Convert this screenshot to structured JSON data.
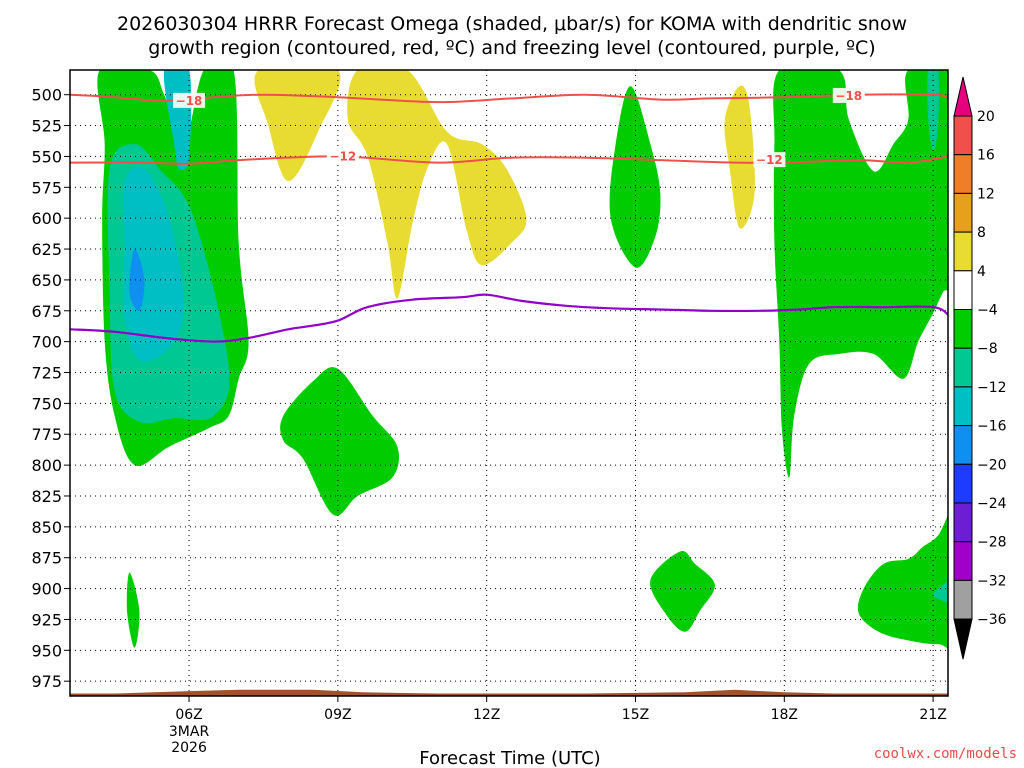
{
  "title_line1": "2026030304 HRRR Forecast Omega (shaded, μbar/s) for KOMA with dendritic snow",
  "title_line2": "growth region (contoured, red, ºC) and freezing level (contoured, purple, ºC)",
  "credit": "coolwx.com/models",
  "chart_data": {
    "type": "heatmap",
    "xlabel": "Forecast Time (UTC)",
    "x_range": [
      3.6,
      21.3
    ],
    "y_range": [
      480,
      987
    ],
    "x_ticks": [
      {
        "x": 6,
        "label": "06Z",
        "sub1": "3MAR",
        "sub2": "2026"
      },
      {
        "x": 9,
        "label": "09Z",
        "sub1": "",
        "sub2": ""
      },
      {
        "x": 12,
        "label": "12Z",
        "sub1": "",
        "sub2": ""
      },
      {
        "x": 15,
        "label": "15Z",
        "sub1": "",
        "sub2": ""
      },
      {
        "x": 18,
        "label": "18Z",
        "sub1": "",
        "sub2": ""
      },
      {
        "x": 21,
        "label": "21Z",
        "sub1": "",
        "sub2": ""
      }
    ],
    "y_ticks": [
      500,
      525,
      550,
      575,
      600,
      625,
      650,
      675,
      700,
      725,
      750,
      775,
      800,
      825,
      850,
      875,
      900,
      925,
      950,
      975
    ],
    "colorbar": {
      "levels": [
        -36,
        -32,
        -28,
        -24,
        -20,
        -16,
        -12,
        -8,
        -4,
        4,
        8,
        12,
        16,
        20
      ],
      "labels": [
        "20",
        "16",
        "12",
        "8",
        "4",
        "−4",
        "−8",
        "−12",
        "−16",
        "−20",
        "−24",
        "−28",
        "−32",
        "−36"
      ],
      "colors": {
        "gt20": "#e6007e",
        "16_20": "#f0504b",
        "12_16": "#f07d28",
        "8_12": "#e6a01e",
        "4_8": "#e8dc32",
        "m4_4": "#ffffff",
        "m8_m4": "#00cc00",
        "m12_m8": "#00c893",
        "m16_m12": "#00bfc4",
        "m20_m16": "#0f8fef",
        "m24_m20": "#1e3cff",
        "m28_m24": "#6e1ed2",
        "m32_m28": "#a000c8",
        "m36_m32": "#a0a0a0",
        "lt36": "#000000"
      }
    },
    "omega_regions": [
      {
        "level": "-4",
        "color": "#00cc00",
        "points": [
          [
            4.2,
            480
          ],
          [
            5.2,
            480
          ],
          [
            5.5,
            500
          ],
          [
            5.9,
            540
          ],
          [
            6.3,
            480
          ],
          [
            6.9,
            480
          ],
          [
            7.0,
            620
          ],
          [
            7.2,
            700
          ],
          [
            7.0,
            730
          ],
          [
            6.8,
            760
          ],
          [
            6.4,
            770
          ],
          [
            5.6,
            785
          ],
          [
            4.9,
            800
          ],
          [
            4.5,
            760
          ],
          [
            4.3,
            700
          ],
          [
            4.25,
            600
          ],
          [
            4.3,
            540
          ]
        ]
      },
      {
        "level": "-8",
        "color": "#00c893",
        "points": [
          [
            4.4,
            560
          ],
          [
            4.9,
            540
          ],
          [
            5.4,
            560
          ],
          [
            6.1,
            600
          ],
          [
            6.8,
            720
          ],
          [
            6.5,
            760
          ],
          [
            5.7,
            762
          ],
          [
            5.0,
            765
          ],
          [
            4.5,
            740
          ],
          [
            4.4,
            660
          ]
        ]
      },
      {
        "level": "-12",
        "color": "#00bfc4",
        "points": [
          [
            5.5,
            480
          ],
          [
            6.0,
            480
          ],
          [
            6.0,
            550
          ],
          [
            5.8,
            560
          ],
          [
            5.7,
            540
          ]
        ]
      },
      {
        "level": "-12",
        "color": "#00bfc4",
        "points": [
          [
            4.7,
            570
          ],
          [
            5.1,
            560
          ],
          [
            5.6,
            600
          ],
          [
            5.9,
            670
          ],
          [
            5.6,
            705
          ],
          [
            5.0,
            715
          ],
          [
            4.7,
            680
          ],
          [
            4.7,
            620
          ]
        ]
      },
      {
        "level": "-16",
        "color": "#0f8fef",
        "points": [
          [
            4.9,
            625
          ],
          [
            5.1,
            650
          ],
          [
            5.0,
            675
          ],
          [
            4.8,
            660
          ]
        ]
      },
      {
        "level": "-4",
        "color": "#00cc00",
        "points": [
          [
            4.8,
            887
          ],
          [
            5.0,
            918
          ],
          [
            4.9,
            948
          ],
          [
            4.75,
            918
          ]
        ]
      },
      {
        "level": "-4",
        "color": "#00cc00",
        "points": [
          [
            7.9,
            760
          ],
          [
            8.5,
            732
          ],
          [
            9.0,
            722
          ],
          [
            9.7,
            760
          ],
          [
            10.2,
            785
          ],
          [
            10.1,
            810
          ],
          [
            9.4,
            825
          ],
          [
            8.9,
            840
          ],
          [
            8.3,
            795
          ],
          [
            7.9,
            780
          ]
        ]
      },
      {
        "level": "-4",
        "color": "#00cc00",
        "points": [
          [
            14.9,
            493
          ],
          [
            15.3,
            540
          ],
          [
            15.5,
            580
          ],
          [
            15.4,
            615
          ],
          [
            15.0,
            640
          ],
          [
            14.5,
            600
          ],
          [
            14.6,
            540
          ]
        ]
      },
      {
        "level": "-4",
        "color": "#00cc00",
        "points": [
          [
            15.3,
            893
          ],
          [
            15.9,
            870
          ],
          [
            16.2,
            880
          ],
          [
            16.6,
            897
          ],
          [
            16.3,
            918
          ],
          [
            16.0,
            935
          ],
          [
            15.6,
            920
          ]
        ]
      },
      {
        "level": "-4",
        "color": "#00cc00",
        "points": [
          [
            17.9,
            480
          ],
          [
            19.1,
            480
          ],
          [
            19.3,
            520
          ],
          [
            19.8,
            562
          ],
          [
            20.2,
            540
          ],
          [
            20.5,
            520
          ],
          [
            20.5,
            480
          ],
          [
            21.5,
            480
          ],
          [
            21.5,
            640
          ],
          [
            21.2,
            660
          ],
          [
            21.0,
            677
          ],
          [
            20.7,
            700
          ],
          [
            20.4,
            730
          ],
          [
            19.8,
            710
          ],
          [
            19.1,
            710
          ],
          [
            18.5,
            718
          ],
          [
            18.2,
            760
          ],
          [
            18.1,
            810
          ],
          [
            17.95,
            770
          ],
          [
            17.9,
            700
          ],
          [
            17.8,
            620
          ],
          [
            17.8,
            540
          ]
        ]
      },
      {
        "level": "-8",
        "color": "#00c893",
        "points": [
          [
            20.9,
            480
          ],
          [
            21.1,
            480
          ],
          [
            21.1,
            525
          ],
          [
            21.0,
            545
          ],
          [
            20.9,
            520
          ]
        ]
      },
      {
        "level": "-4",
        "color": "#00cc00",
        "points": [
          [
            19.6,
            900
          ],
          [
            20.0,
            880
          ],
          [
            20.5,
            876
          ],
          [
            20.8,
            866
          ],
          [
            21.1,
            857
          ],
          [
            21.5,
            835
          ],
          [
            21.5,
            940
          ],
          [
            21.1,
            945
          ],
          [
            20.5,
            942
          ],
          [
            19.9,
            935
          ],
          [
            19.5,
            920
          ]
        ]
      },
      {
        "level": "-8",
        "color": "#00c893",
        "points": [
          [
            21.0,
            905
          ],
          [
            21.3,
            893
          ],
          [
            21.5,
            880
          ],
          [
            21.5,
            920
          ],
          [
            21.3,
            912
          ]
        ]
      },
      {
        "level": "4",
        "color": "#e8dc32",
        "points": [
          [
            7.4,
            480
          ],
          [
            9.0,
            480
          ],
          [
            8.6,
            530
          ],
          [
            8.0,
            570
          ],
          [
            7.6,
            525
          ]
        ]
      },
      {
        "level": "4",
        "color": "#e8dc32",
        "points": [
          [
            9.4,
            480
          ],
          [
            10.4,
            480
          ],
          [
            11.2,
            530
          ],
          [
            11.9,
            540
          ],
          [
            12.4,
            560
          ],
          [
            12.8,
            600
          ],
          [
            12.5,
            620
          ],
          [
            11.9,
            638
          ],
          [
            11.6,
            610
          ],
          [
            11.2,
            540
          ],
          [
            10.8,
            560
          ],
          [
            10.5,
            605
          ],
          [
            10.2,
            665
          ],
          [
            10.0,
            620
          ],
          [
            9.6,
            550
          ],
          [
            9.2,
            520
          ]
        ]
      },
      {
        "level": "4",
        "color": "#e8dc32",
        "points": [
          [
            17.1,
            493
          ],
          [
            17.3,
            510
          ],
          [
            17.4,
            580
          ],
          [
            17.1,
            608
          ],
          [
            16.9,
            560
          ],
          [
            16.8,
            520
          ]
        ]
      }
    ],
    "dgz_isotherms": [
      {
        "value": -18,
        "label": "−18",
        "color": "#f0504b",
        "points": [
          [
            3.6,
            500
          ],
          [
            4.5,
            502
          ],
          [
            5.5,
            505
          ],
          [
            6.5,
            502
          ],
          [
            7.5,
            500
          ],
          [
            9.0,
            502
          ],
          [
            11.0,
            506
          ],
          [
            12.5,
            503
          ],
          [
            14.0,
            500
          ],
          [
            15.5,
            504
          ],
          [
            16.5,
            503
          ],
          [
            18.0,
            502
          ],
          [
            19.5,
            500
          ],
          [
            21.0,
            500
          ],
          [
            21.3,
            502
          ]
        ],
        "labels_at": [
          [
            6.0,
            505
          ],
          [
            19.3,
            501
          ]
        ]
      },
      {
        "value": -12,
        "label": "−12",
        "color": "#f0504b",
        "points": [
          [
            3.6,
            555
          ],
          [
            5.0,
            555
          ],
          [
            6.0,
            556
          ],
          [
            7.0,
            553
          ],
          [
            9.0,
            550
          ],
          [
            11.0,
            555
          ],
          [
            12.5,
            551
          ],
          [
            14.0,
            551
          ],
          [
            15.5,
            553
          ],
          [
            17.0,
            555
          ],
          [
            18.0,
            555
          ],
          [
            19.5,
            553
          ],
          [
            20.5,
            555
          ],
          [
            21.3,
            550
          ]
        ],
        "labels_at": [
          [
            9.1,
            550
          ],
          [
            17.7,
            553
          ]
        ]
      }
    ],
    "freezing_level": {
      "value": 0,
      "color": "#9000c8",
      "points": [
        [
          3.6,
          690
        ],
        [
          4.5,
          692
        ],
        [
          5.5,
          697
        ],
        [
          6.5,
          700
        ],
        [
          7.2,
          697
        ],
        [
          8.0,
          690
        ],
        [
          8.5,
          687
        ],
        [
          9.0,
          683
        ],
        [
          9.6,
          672
        ],
        [
          10.5,
          666
        ],
        [
          11.5,
          664
        ],
        [
          12.0,
          662
        ],
        [
          12.7,
          667
        ],
        [
          13.6,
          671
        ],
        [
          14.5,
          673
        ],
        [
          15.5,
          674
        ],
        [
          16.5,
          675
        ],
        [
          17.5,
          675
        ],
        [
          18.3,
          674
        ],
        [
          19.0,
          672
        ],
        [
          20.0,
          672
        ],
        [
          21.0,
          672
        ],
        [
          21.3,
          678
        ]
      ]
    },
    "terrain": {
      "color": "#a0522d",
      "points": [
        [
          3.6,
          985
        ],
        [
          4.5,
          985
        ],
        [
          6.0,
          983
        ],
        [
          7.0,
          982
        ],
        [
          8.5,
          982
        ],
        [
          9.5,
          984
        ],
        [
          11.0,
          985
        ],
        [
          14.0,
          985
        ],
        [
          16.0,
          984
        ],
        [
          17.0,
          982
        ],
        [
          18.0,
          984
        ],
        [
          19.0,
          985
        ],
        [
          21.3,
          985
        ]
      ]
    }
  }
}
